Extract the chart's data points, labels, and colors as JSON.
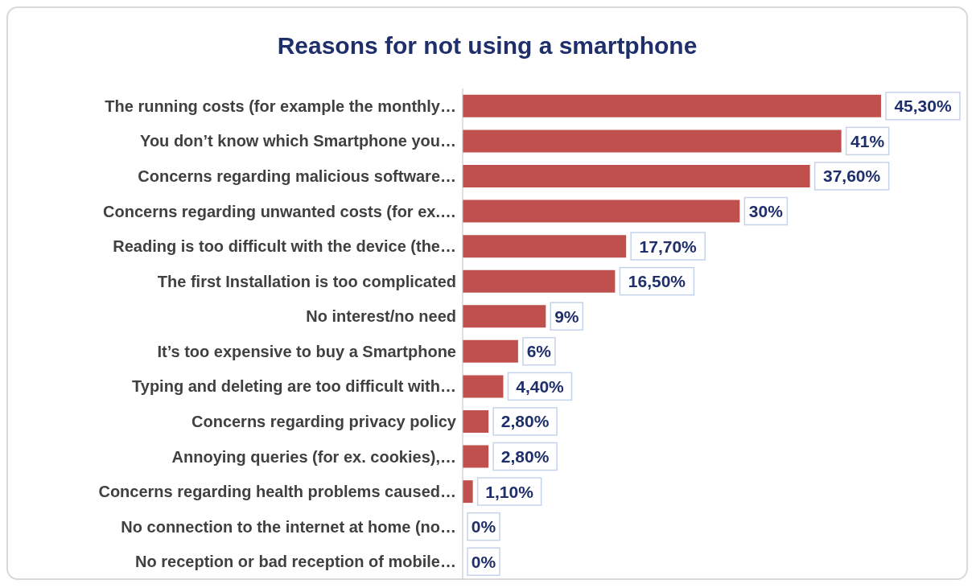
{
  "chart_data": {
    "type": "bar",
    "orientation": "horizontal",
    "title": "Reasons for not using a smartphone",
    "categories": [
      "The running costs (for example the monthly…",
      "You don’t know which Smartphone you…",
      "Concerns regarding malicious software…",
      "Concerns regarding unwanted costs (for ex.…",
      "Reading is too difficult with the device (the…",
      "The first Installation is too complicated",
      "No interest/no need",
      "It’s too expensive to buy a Smartphone",
      "Typing and deleting are too difficult with…",
      "Concerns regarding privacy policy",
      "Annoying queries (for ex. cookies),…",
      "Concerns regarding health problems caused…",
      "No connection to the internet at home (no…",
      "No reception or bad reception of mobile…"
    ],
    "values": [
      45.3,
      41,
      37.6,
      30,
      17.7,
      16.5,
      9,
      6,
      4.4,
      2.8,
      2.8,
      1.1,
      0,
      0
    ],
    "value_labels": [
      "45,30%",
      "41%",
      "37,60%",
      "30%",
      "17,70%",
      "16,50%",
      "9%",
      "6%",
      "4,40%",
      "2,80%",
      "2,80%",
      "1,10%",
      "0%",
      "0%"
    ],
    "color": "#c0504d"
  }
}
